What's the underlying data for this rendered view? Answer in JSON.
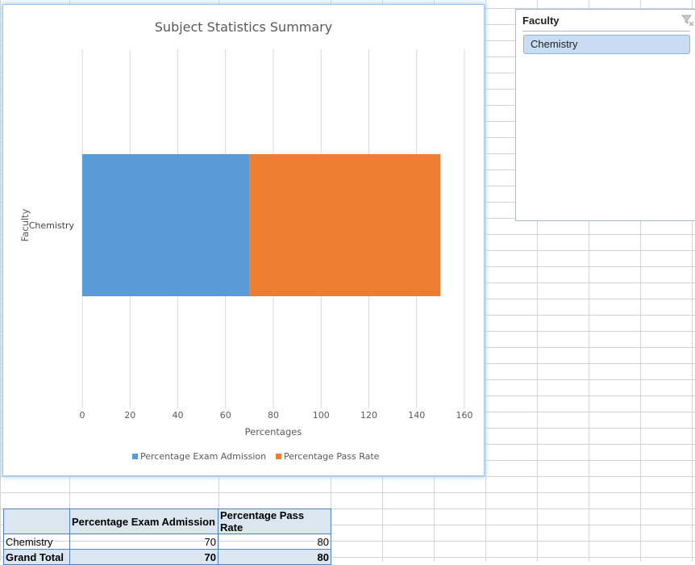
{
  "slicer": {
    "title": "Faculty",
    "items": [
      "Chemistry"
    ],
    "clear_icon": "clear-filter-icon"
  },
  "pivot_table": {
    "columns": [
      "",
      "Percentage Exam Admission",
      "Percentage Pass Rate"
    ],
    "rows": [
      {
        "label": "Chemistry",
        "values": [
          "70",
          "80"
        ]
      },
      {
        "label": "Grand Total",
        "values": [
          "70",
          "80"
        ]
      }
    ]
  },
  "chart_data": {
    "type": "bar",
    "orientation": "horizontal",
    "stacked": true,
    "title": "Subject Statistics Summary",
    "xlabel": "Percentages",
    "ylabel": "Faculty",
    "categories": [
      "Chemistry"
    ],
    "series": [
      {
        "name": "Percentage Exam Admission",
        "values": [
          70
        ],
        "color": "#5b9bd5"
      },
      {
        "name": "Percentage Pass Rate",
        "values": [
          80
        ],
        "color": "#ed7d31"
      }
    ],
    "xlim": [
      0,
      160
    ],
    "xticks": [
      "0",
      "20",
      "40",
      "60",
      "80",
      "100",
      "120",
      "140",
      "160"
    ],
    "grid": true,
    "legend": "bottom"
  }
}
